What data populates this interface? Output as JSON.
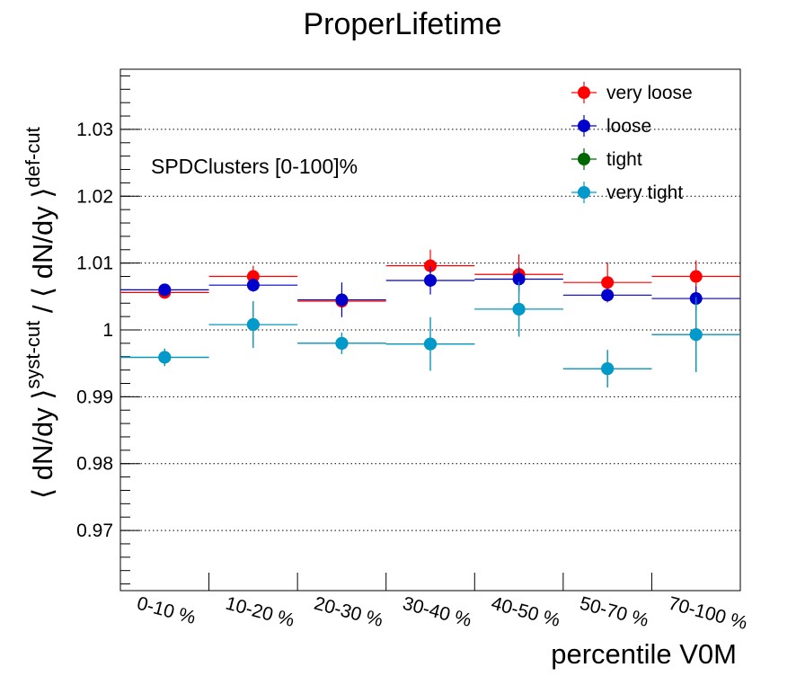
{
  "chart_data": {
    "type": "scatter",
    "title": "ProperLifetime",
    "annotation": "SPDClusters [0-100]%",
    "xlabel": "percentile V0M",
    "ylabel": {
      "open": "⟨ dN/dy ⟩",
      "sup1": "syst-cut",
      "mid": " / ⟨ dN/dy ⟩",
      "sup2": "def-cut"
    },
    "categories": [
      "0-10 %",
      "10-20 %",
      "20-30 %",
      "30-40 %",
      "40-50 %",
      "50-70 %",
      "70-100 %"
    ],
    "ylim": [
      0.961,
      1.039
    ],
    "yticks": [
      {
        "v": 0.97,
        "label": "0.97"
      },
      {
        "v": 0.98,
        "label": "0.98"
      },
      {
        "v": 0.99,
        "label": "0.99"
      },
      {
        "v": 1.0,
        "label": "1"
      },
      {
        "v": 1.01,
        "label": "1.01"
      },
      {
        "v": 1.02,
        "label": "1.02"
      },
      {
        "v": 1.03,
        "label": "1.03"
      }
    ],
    "grid": "horizontal-dotted",
    "legend_position": "top-right",
    "series": [
      {
        "name": "very loose",
        "color": "#ff0000",
        "values": [
          1.0056,
          1.008,
          1.0043,
          1.0096,
          1.0083,
          1.0071,
          1.008
        ],
        "errors": [
          0.0004,
          0.0016,
          0.0007,
          0.0024,
          0.003,
          0.003,
          0.0024
        ]
      },
      {
        "name": "loose",
        "color": "#0000cc",
        "values": [
          1.006,
          1.0067,
          1.0045,
          1.0074,
          1.0076,
          1.0052,
          1.0047
        ],
        "errors": [
          0.0004,
          0.001,
          0.0026,
          0.0021,
          0.0018,
          0.0008,
          0.0018
        ]
      },
      {
        "name": "tight",
        "color": "#006600",
        "values": [
          0.9959,
          1.0008,
          0.998,
          0.9979,
          1.0031,
          0.9942,
          0.9993
        ],
        "errors": [
          0.0013,
          0.0035,
          0.0016,
          0.004,
          0.0041,
          0.0028,
          0.0056
        ]
      },
      {
        "name": "very tight",
        "color": "#0099cc",
        "values": [
          0.9959,
          1.0008,
          0.998,
          0.9979,
          1.0031,
          0.9942,
          0.9993
        ],
        "errors": [
          0.0013,
          0.0035,
          0.0016,
          0.004,
          0.0041,
          0.0028,
          0.0056
        ]
      }
    ]
  }
}
